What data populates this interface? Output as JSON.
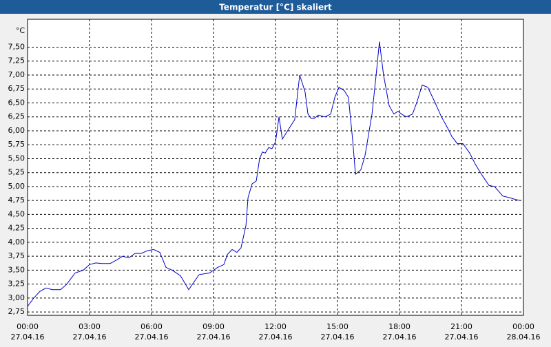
{
  "chart_data": {
    "type": "line",
    "title": "Temperatur [°C] skaliert",
    "y_unit": "°C",
    "x": [
      0,
      0.3,
      0.6,
      0.9,
      1.2,
      1.6,
      1.9,
      2.3,
      2.7,
      3.0,
      3.3,
      3.6,
      4.0,
      4.3,
      4.6,
      4.9,
      5.2,
      5.5,
      5.8,
      6.1,
      6.4,
      6.7,
      7.0,
      7.4,
      7.8,
      8.3,
      8.8,
      9.2,
      9.5,
      9.67,
      9.9,
      10.13,
      10.33,
      10.57,
      10.67,
      10.87,
      11.07,
      11.23,
      11.37,
      11.5,
      11.67,
      11.83,
      12.0,
      12.17,
      12.33,
      12.67,
      12.93,
      13.17,
      13.43,
      13.57,
      13.73,
      13.87,
      14.07,
      14.4,
      14.67,
      14.87,
      15.07,
      15.33,
      15.53,
      15.73,
      15.87,
      16.13,
      16.33,
      16.67,
      16.87,
      17.03,
      17.23,
      17.5,
      17.73,
      17.93,
      18.1,
      18.33,
      18.63,
      18.83,
      19.1,
      19.37,
      19.73,
      20.03,
      20.33,
      20.53,
      20.8,
      21.07,
      21.4,
      21.67,
      22.0,
      22.33,
      22.6,
      23.0,
      23.33,
      23.6,
      23.83
    ],
    "series": [
      {
        "name": "Temperatur",
        "color": "#0000cc",
        "values": [
          2.85,
          3.0,
          3.12,
          3.18,
          3.15,
          3.15,
          3.25,
          3.45,
          3.5,
          3.6,
          3.63,
          3.62,
          3.62,
          3.68,
          3.75,
          3.72,
          3.8,
          3.8,
          3.85,
          3.87,
          3.82,
          3.55,
          3.5,
          3.4,
          3.15,
          3.42,
          3.45,
          3.55,
          3.6,
          3.78,
          3.87,
          3.82,
          3.9,
          4.3,
          4.8,
          5.05,
          5.1,
          5.5,
          5.62,
          5.6,
          5.7,
          5.68,
          5.8,
          6.25,
          5.85,
          6.05,
          6.2,
          7.0,
          6.7,
          6.3,
          6.22,
          6.22,
          6.28,
          6.25,
          6.3,
          6.6,
          6.78,
          6.72,
          6.6,
          5.85,
          5.22,
          5.3,
          5.55,
          6.3,
          7.0,
          7.6,
          7.0,
          6.45,
          6.3,
          6.35,
          6.3,
          6.25,
          6.3,
          6.5,
          6.82,
          6.78,
          6.5,
          6.25,
          6.05,
          5.9,
          5.77,
          5.77,
          5.6,
          5.4,
          5.2,
          5.02,
          5.0,
          4.83,
          4.8,
          4.77,
          4.75
        ]
      }
    ],
    "xlim": [
      0,
      24
    ],
    "xticks": [
      {
        "value": 0,
        "label": "00:00"
      },
      {
        "value": 3,
        "label": "03:00"
      },
      {
        "value": 6,
        "label": "06:00"
      },
      {
        "value": 9,
        "label": "09:00"
      },
      {
        "value": 12,
        "label": "12:00"
      },
      {
        "value": 15,
        "label": "15:00"
      },
      {
        "value": 18,
        "label": "18:00"
      },
      {
        "value": 21,
        "label": "21:00"
      },
      {
        "value": 24,
        "label": "00:00"
      }
    ],
    "xtick_dates": [
      "27.04.16",
      "27.04.16",
      "27.04.16",
      "27.04.16",
      "27.04.16",
      "27.04.16",
      "27.04.16",
      "27.04.16",
      "28.04.16"
    ],
    "ylim": [
      2.69,
      8.0
    ],
    "yticks": [
      {
        "value": 2.75,
        "label": "2,75"
      },
      {
        "value": 3.0,
        "label": "3,00"
      },
      {
        "value": 3.25,
        "label": "3,25"
      },
      {
        "value": 3.5,
        "label": "3,50"
      },
      {
        "value": 3.75,
        "label": "3,75"
      },
      {
        "value": 4.0,
        "label": "4,00"
      },
      {
        "value": 4.25,
        "label": "4,25"
      },
      {
        "value": 4.5,
        "label": "4,50"
      },
      {
        "value": 4.75,
        "label": "4,75"
      },
      {
        "value": 5.0,
        "label": "5,00"
      },
      {
        "value": 5.25,
        "label": "5,25"
      },
      {
        "value": 5.5,
        "label": "5,50"
      },
      {
        "value": 5.75,
        "label": "5,75"
      },
      {
        "value": 6.0,
        "label": "6,00"
      },
      {
        "value": 6.25,
        "label": "6,25"
      },
      {
        "value": 6.5,
        "label": "6,50"
      },
      {
        "value": 6.75,
        "label": "6,75"
      },
      {
        "value": 7.0,
        "label": "7,00"
      },
      {
        "value": 7.25,
        "label": "7,25"
      },
      {
        "value": 7.5,
        "label": "7,50"
      }
    ],
    "grid": true
  }
}
